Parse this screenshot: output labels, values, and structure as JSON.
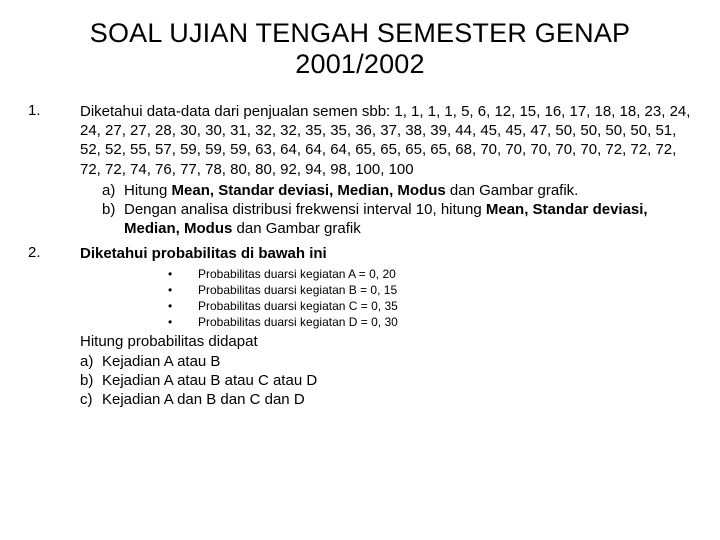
{
  "title_line1": "SOAL UJIAN TENGAH SEMESTER GENAP",
  "title_line2": "2001/2002",
  "q1": {
    "num": "1.",
    "intro_prefix": "Diketahui data-data dari penjualan semen sbb: ",
    "data_values": "1, 1, 1, 1, 5, 6, 12, 15, 16, 17, 18, 18, 23, 24, 24, 27, 27, 28, 30, 30, 31, 32, 32, 35, 35, 36, 37, 38, 39, 44, 45, 45, 47, 50, 50, 50, 50, 51, 52, 52, 55, 57, 59, 59, 59, 63, 64, 64, 64, 65, 65, 65, 65, 68, 70, 70, 70, 70, 70, 72, 72, 72, 72, 72, 74, 76, 77, 78, 80, 80, 92, 94, 98, 100, 100",
    "a_label": "a)",
    "a_pre": "Hitung ",
    "a_bold": "Mean, Standar deviasi, Median, Modus",
    "a_post": " dan Gambar grafik.",
    "b_label": "b)",
    "b_pre": "Dengan analisa distribusi frekwensi interval 10, hitung ",
    "b_bold": "Mean, Standar deviasi, Median, Modus",
    "b_post": " dan Gambar grafik"
  },
  "q2": {
    "num": "2.",
    "intro": "Diketahui probabilitas di bawah ini",
    "bullets": [
      "Probabilitas duarsi kegiatan A = 0, 20",
      "Probabilitas duarsi kegiatan B = 0, 15",
      "Probabilitas duarsi kegiatan C = 0, 35",
      "Probabilitas duarsi kegiatan D = 0, 30"
    ],
    "cont_intro": "Hitung probabilitas didapat",
    "a_label": "a)",
    "a_text": "Kejadian A atau B",
    "b_label": "b)",
    "b_text": "Kejadian A atau B atau C atau D",
    "c_label": "c)",
    "c_text": "Kejadian A dan B dan C dan D"
  }
}
